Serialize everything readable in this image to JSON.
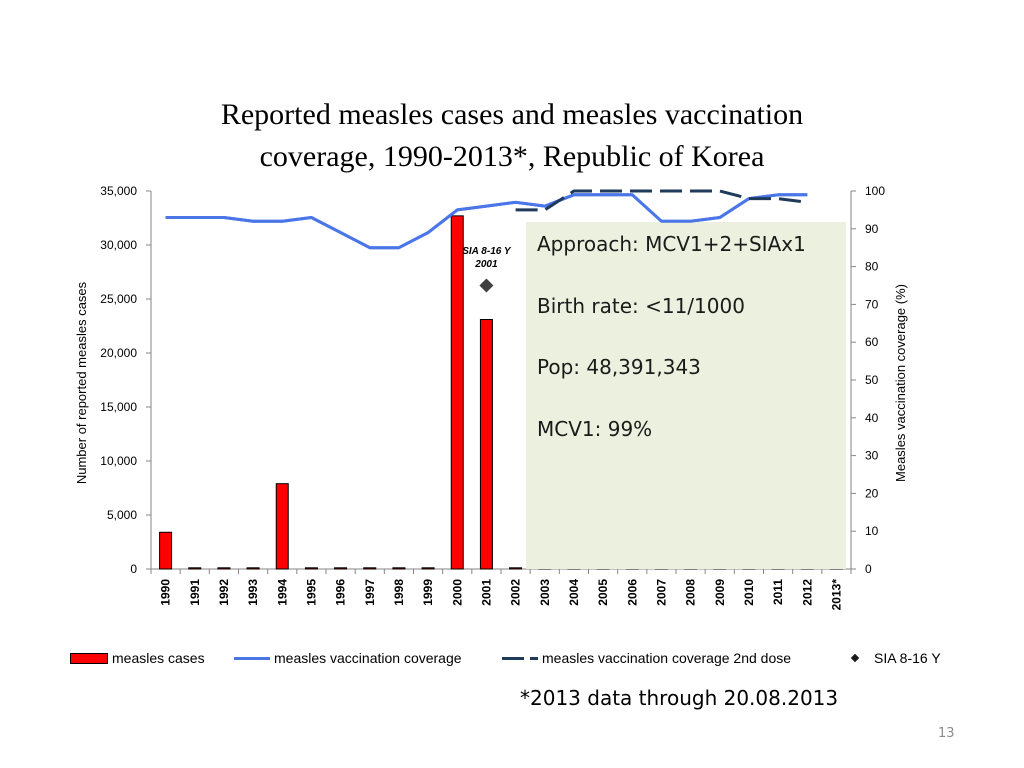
{
  "slide": {
    "title_line1": "Reported measles cases and measles vaccination",
    "title_line2": "coverage, 1990-2013*, Republic of Korea",
    "footnote": "*2013 data through 20.08.2013",
    "page_number": "13"
  },
  "info_box": {
    "approach": "Approach: MCV1+2+SIAx1",
    "birth_rate": "Birth rate: <11/1000",
    "pop": "Pop: 48,391,343",
    "mcv1": "MCV1: 99%",
    "background_color": "#ebf1de"
  },
  "chart_data": {
    "type": "bar",
    "title": "Reported measles cases and measles vaccination coverage, 1990-2013*, Republic of Korea",
    "categories": [
      "1990",
      "1991",
      "1992",
      "1993",
      "1994",
      "1995",
      "1996",
      "1997",
      "1998",
      "1999",
      "2000",
      "2001",
      "2002",
      "2003",
      "2004",
      "2005",
      "2006",
      "2007",
      "2008",
      "2009",
      "2010",
      "2011",
      "2012",
      "2013*"
    ],
    "ylabel": "Number of reported measles cases",
    "y2label": "Measles vaccination coverage (%)",
    "ylim": [
      0,
      35000
    ],
    "y2lim": [
      0,
      100
    ],
    "y_ticks": [
      "0",
      "5,000",
      "10,000",
      "15,000",
      "20,000",
      "25,000",
      "30,000",
      "35,000"
    ],
    "y2_ticks": [
      "0",
      "10",
      "20",
      "30",
      "40",
      "50",
      "60",
      "70",
      "80",
      "90",
      "100"
    ],
    "series": [
      {
        "name": "measles cases",
        "kind": "bar",
        "axis": "left",
        "color": "#ff0000",
        "values": [
          3400,
          0,
          0,
          0,
          7900,
          50,
          80,
          30,
          20,
          0,
          32700,
          23100,
          50,
          0,
          0,
          0,
          0,
          0,
          0,
          0,
          0,
          0,
          0,
          0
        ]
      },
      {
        "name": "measles vaccination coverage",
        "kind": "line",
        "axis": "right",
        "color": "#4a76e8",
        "values": [
          93,
          93,
          93,
          92,
          92,
          93,
          89,
          85,
          85,
          89,
          95,
          96,
          97,
          96,
          99,
          99,
          99,
          92,
          92,
          93,
          98,
          99,
          99,
          null
        ]
      },
      {
        "name": "measles vaccination coverage 2nd dose",
        "kind": "dashed-line",
        "axis": "right",
        "color": "#1f3a5a",
        "values": [
          null,
          null,
          null,
          null,
          null,
          null,
          null,
          null,
          null,
          null,
          null,
          null,
          95,
          95,
          100,
          100,
          100,
          100,
          100,
          100,
          98,
          98,
          97,
          null
        ]
      },
      {
        "name": "SIA 8-16 Y",
        "kind": "marker",
        "axis": "right",
        "color": "#404040",
        "values": [
          null,
          null,
          null,
          null,
          null,
          null,
          null,
          null,
          null,
          null,
          null,
          75,
          null,
          null,
          null,
          null,
          null,
          null,
          null,
          null,
          null,
          null,
          null,
          null
        ]
      }
    ],
    "annotations": [
      {
        "text_line1": "SIA 8-16 Y",
        "text_line2": "2001",
        "category": "2001"
      }
    ],
    "legend_position": "bottom"
  }
}
